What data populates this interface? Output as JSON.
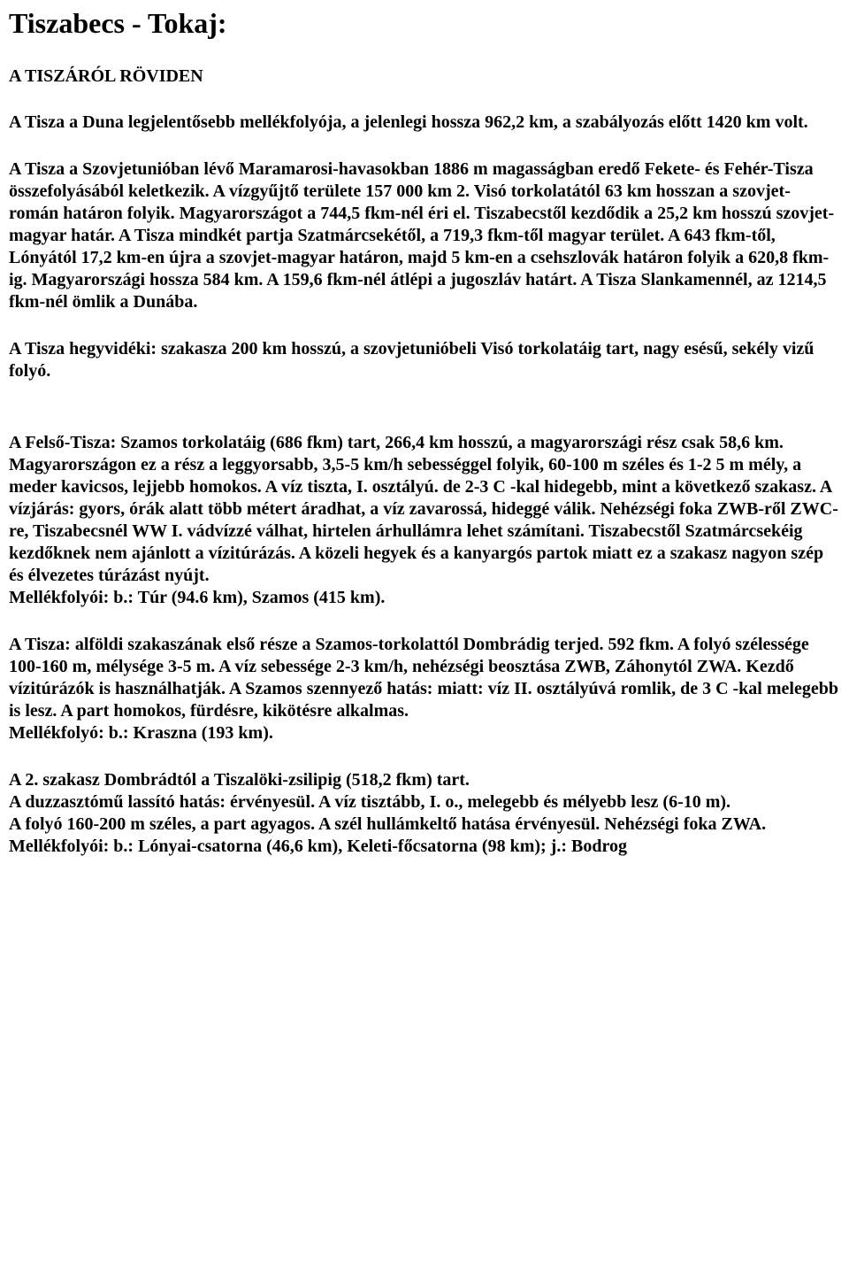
{
  "title": "Tiszabecs - Tokaj:",
  "section_head": "A TISZÁRÓL RÖVIDEN",
  "paragraphs": {
    "p1": "A Tisza a Duna legjelentősebb mellékfolyója, a jelenlegi hossza 962,2 km, a szabályozás előtt 1420 km volt.",
    "p2": "A Tisza a Szovjetunióban lévő Maramarosi-havasokban 1886 m magasságban eredő Fekete- és Fehér-Tisza összefolyásából keletkezik. A vízgyűjtő területe 157 000 km 2. Visó torkolatától 63 km hosszan a szovjet- román határon folyik. Magyarországot a 744,5 fkm-nél éri el. Tiszabecstől kezdődik a 25,2 km hosszú szovjet-magyar határ. A Tisza mindkét partja Szatmárcsekétől, a 719,3 fkm-től magyar terület. A 643 fkm-től, Lónyától 17,2 km-en újra a szovjet-magyar határon, majd 5 km-en a csehszlovák határon folyik a 620,8 fkm-ig. Magyarországi hossza 584 km. A 159,6 fkm-nél átlépi a jugoszláv határt. A Tisza Slankamennél, az 1214,5 fkm-nél ömlik a Dunába.",
    "p3": "A Tisza hegyvidéki: szakasza 200 km hosszú, a szovjetunióbeli Visó torkolatáig tart, nagy esésű, sekély vizű folyó.",
    "p4": "A Felső-Tisza: Szamos torkolatáig (686 fkm) tart, 266,4 km hosszú, a magyarországi rész csak 58,6 km.\nMagyarországon ez a rész a leggyorsabb, 3,5-5 km/h sebességgel folyik, 60-100 m széles és 1-2 5 m mély, a meder kavicsos, lejjebb homokos. A víz tiszta, I. osztályú. de 2-3 C -kal hidegebb, mint a következő szakasz. A vízjárás: gyors, órák alatt több métert áradhat, a víz zavarossá, hideggé válik. Nehézségi foka ZWB-ről ZWC-re, Tiszabecsnél WW I. vádvízzé válhat, hirtelen árhullámra lehet számítani. Tiszabecstől Szatmárcsekéig kezdőknek nem ajánlott a vízitúrázás. A közeli hegyek és a kanyargós partok miatt ez a szakasz nagyon szép és élvezetes túrázást nyújt.\nMellékfolyói: b.: Túr (94.6 km), Szamos (415 km).",
    "p5": "A Tisza: alföldi szakaszának első része a Szamos-torkolattól Dombrádig terjed. 592 fkm. A folyó szélessége 100-160 m, mélysége 3-5 m. A víz sebessége 2-3 km/h, nehézségi beosztása ZWB, Záhonytól ZWA. Kezdő vízitúrázók is használhatják. A Szamos szennyező hatás: miatt: víz II. osztályúvá romlik, de 3 C -kal melegebb is lesz. A part homokos, fürdésre, kikötésre alkalmas.\nMellékfolyó: b.: Kraszna (193 km).",
    "p6": "A 2. szakasz Dombrádtól a Tiszalöki-zsilipig (518,2 fkm) tart.\nA duzzasztómű lassító hatás: érvényesül. A víz tisztább, I. o., melegebb és mélyebb lesz (6-10 m).\nA folyó 160-200 m széles, a part agyagos. A szél hullámkeltő hatása érvényesül. Nehézségi foka ZWA.\nMellékfolyói: b.: Lónyai-csatorna (46,6 km), Keleti-főcsatorna (98 km); j.: Bodrog"
  }
}
